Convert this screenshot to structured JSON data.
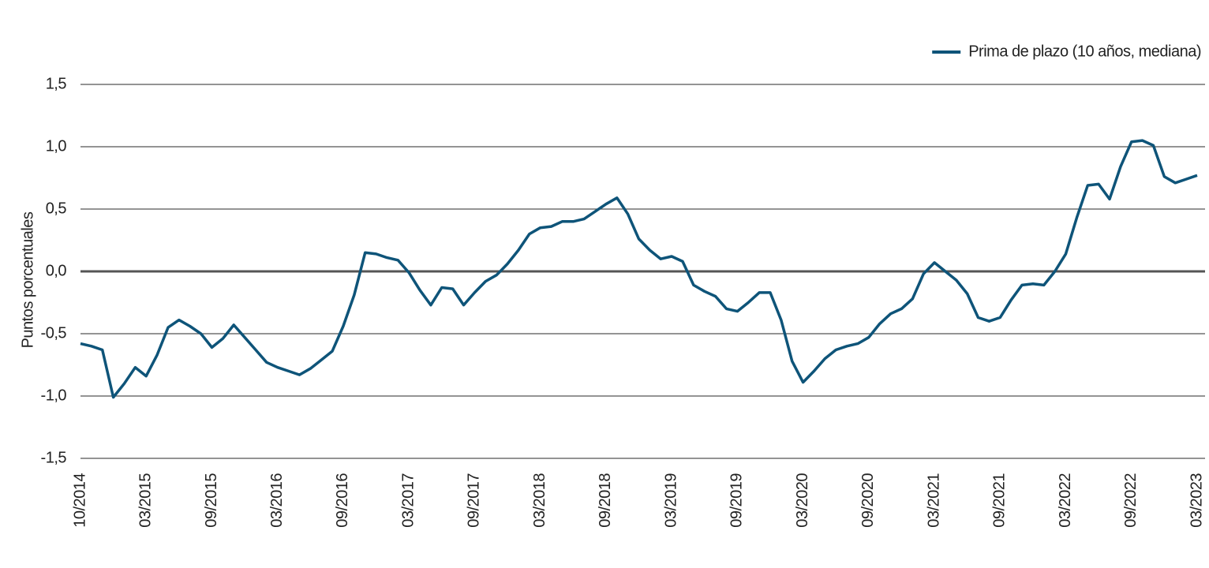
{
  "chart_data": {
    "type": "line",
    "y_label": "Puntos porcentuales",
    "categories": [
      "10/2014",
      null,
      null,
      null,
      null,
      null,
      "03/2015",
      null,
      null,
      null,
      null,
      null,
      "09/2015",
      null,
      null,
      null,
      null,
      null,
      "03/2016",
      null,
      null,
      null,
      null,
      null,
      "09/2016",
      null,
      null,
      null,
      null,
      null,
      "03/2017",
      null,
      null,
      null,
      null,
      null,
      "09/2017",
      null,
      null,
      null,
      null,
      null,
      "03/2018",
      null,
      null,
      null,
      null,
      null,
      "09/2018",
      null,
      null,
      null,
      null,
      null,
      "03/2019",
      null,
      null,
      null,
      null,
      null,
      "09/2019",
      null,
      null,
      null,
      null,
      null,
      "03/2020",
      null,
      null,
      null,
      null,
      null,
      "09/2020",
      null,
      null,
      null,
      null,
      null,
      "03/2021",
      null,
      null,
      null,
      null,
      null,
      "09/2021",
      null,
      null,
      null,
      null,
      null,
      "03/2022",
      null,
      null,
      null,
      null,
      null,
      "09/2022",
      null,
      null,
      null,
      null,
      null,
      "03/2023"
    ],
    "series": [
      {
        "name": "Prima de plazo (10 años, mediana)",
        "color": "#0e5479",
        "values": [
          -0.58,
          -0.6,
          -0.63,
          -1.01,
          -0.9,
          -0.77,
          -0.84,
          -0.67,
          -0.45,
          -0.39,
          -0.44,
          -0.5,
          -0.61,
          -0.54,
          -0.43,
          -0.53,
          -0.63,
          -0.73,
          -0.77,
          -0.8,
          -0.83,
          -0.78,
          -0.71,
          -0.64,
          -0.44,
          -0.19,
          0.15,
          0.14,
          0.11,
          0.09,
          -0.01,
          -0.15,
          -0.27,
          -0.13,
          -0.14,
          -0.27,
          -0.17,
          -0.08,
          -0.03,
          0.06,
          0.17,
          0.3,
          0.35,
          0.36,
          0.4,
          0.4,
          0.42,
          0.48,
          0.54,
          0.59,
          0.46,
          0.26,
          0.17,
          0.1,
          0.12,
          0.08,
          -0.11,
          -0.16,
          -0.2,
          -0.3,
          -0.32,
          -0.25,
          -0.17,
          -0.17,
          -0.39,
          -0.72,
          -0.89,
          -0.8,
          -0.7,
          -0.63,
          -0.6,
          -0.58,
          -0.53,
          -0.42,
          -0.34,
          -0.3,
          -0.22,
          -0.02,
          0.07,
          0.0,
          -0.07,
          -0.18,
          -0.37,
          -0.4,
          -0.37,
          -0.23,
          -0.11,
          -0.1,
          -0.11,
          0.0,
          0.14,
          0.43,
          0.69,
          0.7,
          0.58,
          0.84,
          1.04,
          1.05,
          1.01,
          0.76,
          0.71,
          0.74,
          0.77
        ]
      }
    ],
    "ylim": [
      -1.5,
      1.5
    ],
    "yticks": [
      {
        "value": -1.5,
        "label": "-1,5"
      },
      {
        "value": -1,
        "label": "-1,0"
      },
      {
        "value": -0.5,
        "label": "-0,5"
      },
      {
        "value": 0,
        "label": "0,0"
      },
      {
        "value": 0.5,
        "label": "0,5"
      },
      {
        "value": 1,
        "label": "1,0"
      },
      {
        "value": 1.5,
        "label": "1,5"
      }
    ],
    "grid": true,
    "legend": "top-right"
  }
}
